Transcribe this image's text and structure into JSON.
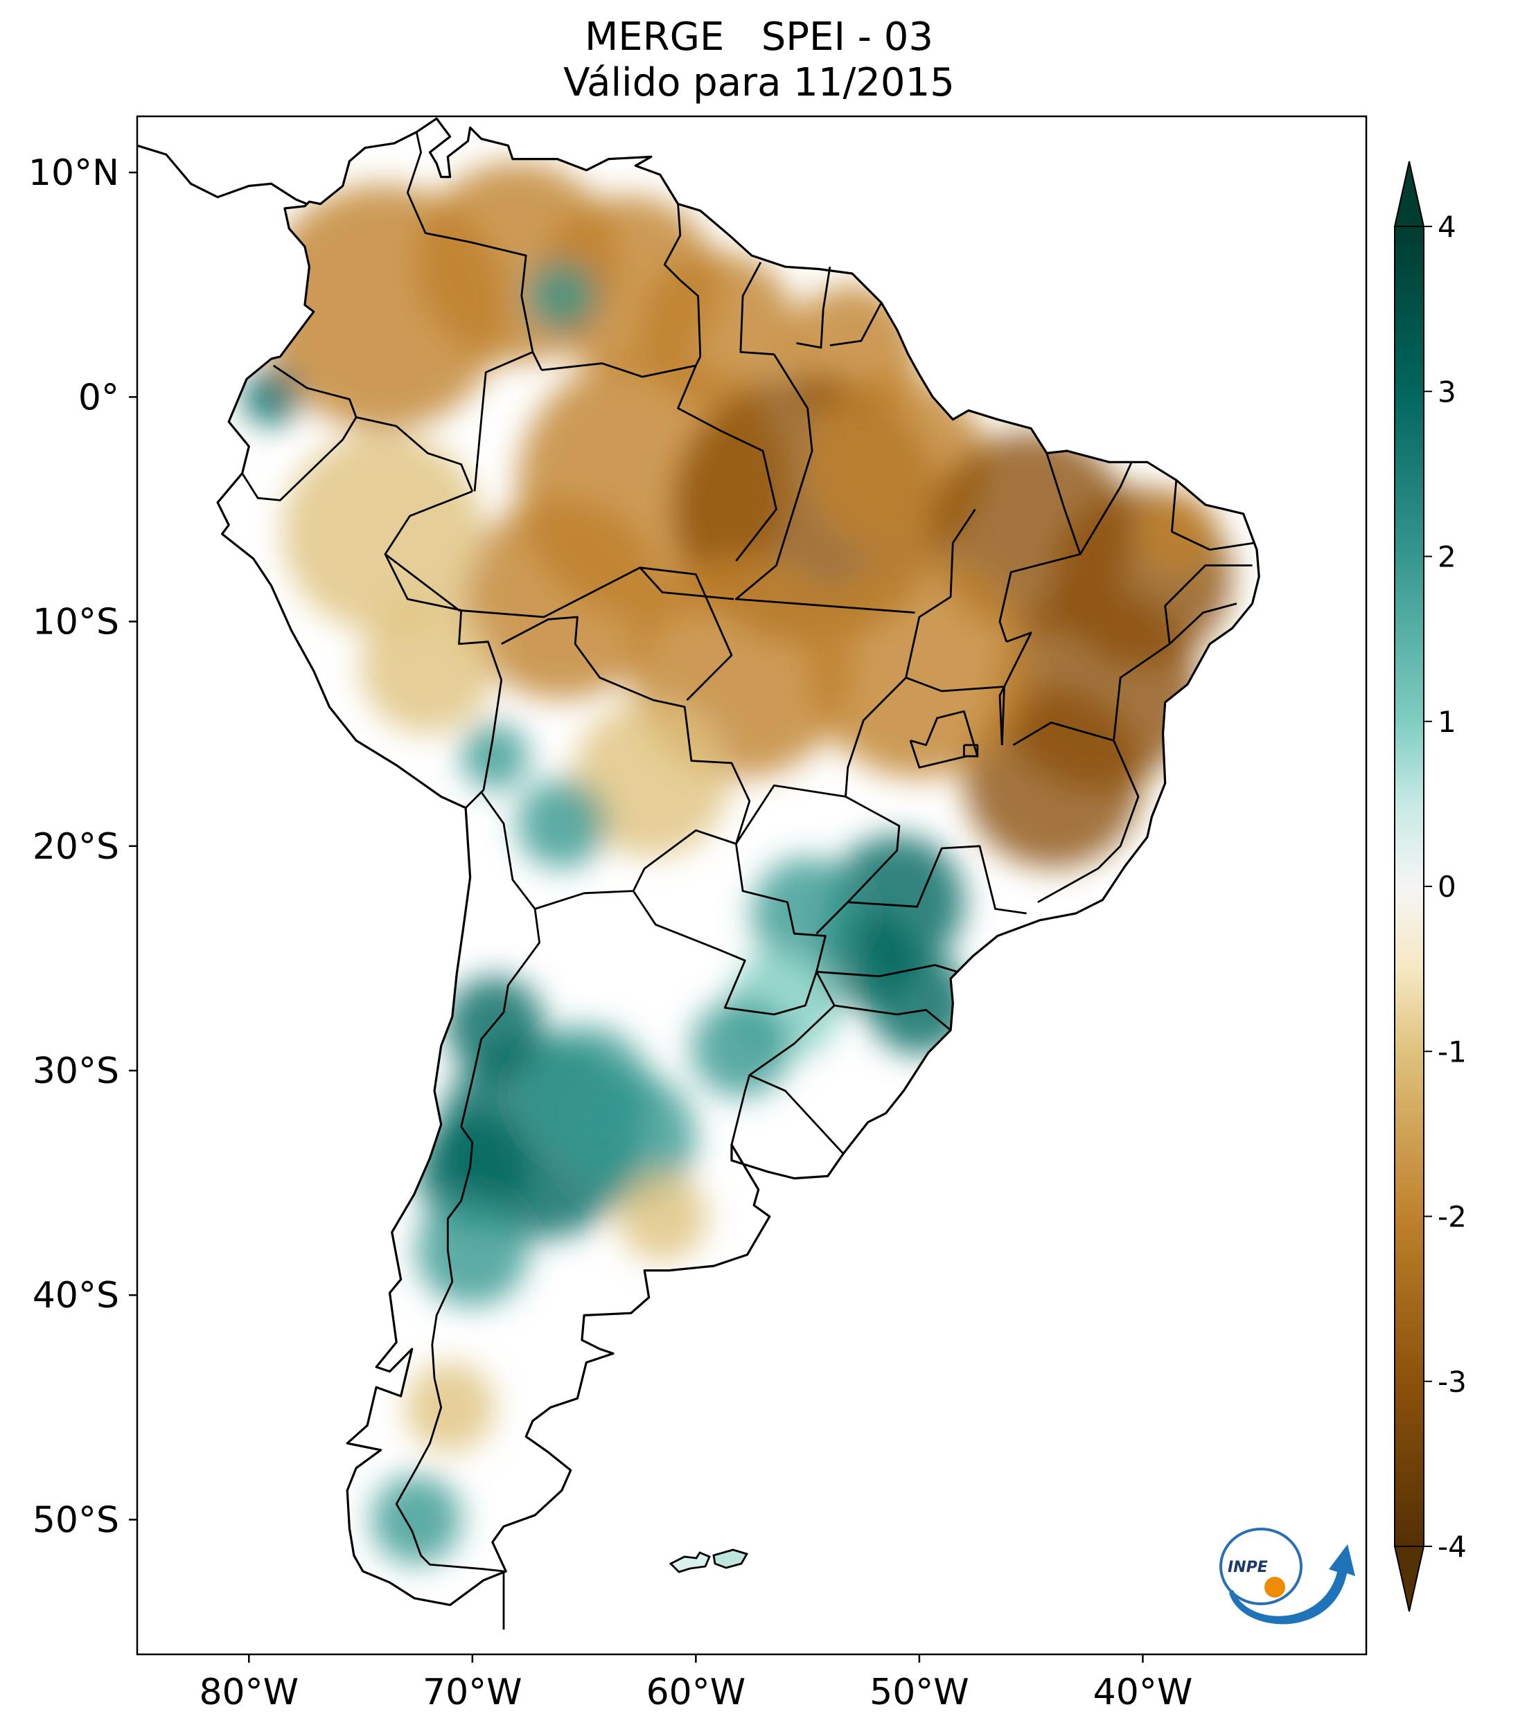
{
  "title": {
    "line1": "MERGE   SPEI - 03",
    "line2": "Válido para 11/2015"
  },
  "map": {
    "extent": {
      "lon": [
        -85,
        -30
      ],
      "lat": [
        -56,
        12.5
      ]
    },
    "lat_ticks": [
      {
        "value": 10,
        "label": "10°N"
      },
      {
        "value": 0,
        "label": "0°"
      },
      {
        "value": -10,
        "label": "10°S"
      },
      {
        "value": -20,
        "label": "20°S"
      },
      {
        "value": -30,
        "label": "30°S"
      },
      {
        "value": -40,
        "label": "40°S"
      },
      {
        "value": -50,
        "label": "50°S"
      }
    ],
    "lon_ticks": [
      {
        "value": -80,
        "label": "80°W"
      },
      {
        "value": -70,
        "label": "70°W"
      },
      {
        "value": -60,
        "label": "60°W"
      },
      {
        "value": -50,
        "label": "50°W"
      },
      {
        "value": -40,
        "label": "40°W"
      }
    ],
    "dry_color": "#c58a2c",
    "wet_color": "#1f8a7a"
  },
  "colorbar": {
    "range": [
      -4,
      4
    ],
    "ticks": [
      "4",
      "3",
      "2",
      "1",
      "0",
      "-1",
      "-2",
      "-3",
      "-4"
    ],
    "stops": [
      {
        "v": -4,
        "color": "#543005"
      },
      {
        "v": -3,
        "color": "#8c510a"
      },
      {
        "v": -2,
        "color": "#bf812d"
      },
      {
        "v": -1,
        "color": "#dfc27d"
      },
      {
        "v": -0.5,
        "color": "#f6e8c3"
      },
      {
        "v": 0,
        "color": "#f5f5f5"
      },
      {
        "v": 0.5,
        "color": "#c7eae5"
      },
      {
        "v": 1,
        "color": "#80cdc1"
      },
      {
        "v": 2,
        "color": "#35978f"
      },
      {
        "v": 3,
        "color": "#01665e"
      },
      {
        "v": 4,
        "color": "#003c30"
      }
    ]
  },
  "logo": {
    "text": "INPE"
  }
}
